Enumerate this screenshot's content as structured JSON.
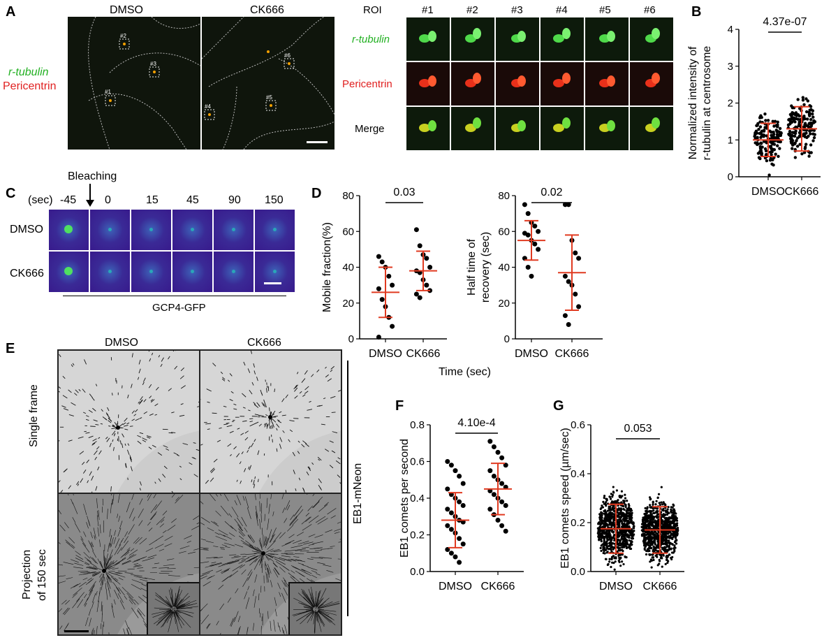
{
  "panels": {
    "A": "A",
    "B": "B",
    "C": "C",
    "D": "D",
    "E": "E",
    "F": "F",
    "G": "G"
  },
  "panelA": {
    "col_dmso": "DMSO",
    "col_ck666": "CK666",
    "stain_green": "r-tubulin",
    "stain_red": "Pericentrin",
    "roi_labels": [
      "#1",
      "#2",
      "#3",
      "#4",
      "#5",
      "#6"
    ],
    "roi_header": "ROI",
    "row_labels": [
      "r-tubulin",
      "Pericentrin",
      "Merge"
    ],
    "colors": {
      "green": "#22b022",
      "red": "#e02020"
    }
  },
  "panelC": {
    "bleaching": "Bleaching",
    "sec": "(sec)",
    "times": [
      "-45",
      "0",
      "15",
      "45",
      "90",
      "150"
    ],
    "rows": [
      "DMSO",
      "CK666"
    ],
    "footer": "GCP4-GFP"
  },
  "panelE": {
    "cols": [
      "DMSO",
      "CK666"
    ],
    "rows": [
      "Single frame",
      "Projection",
      "of 150 sec"
    ],
    "side_label": "EB1-mNeon"
  },
  "common": {
    "xlabel_time": "Time (sec)"
  },
  "chart_data": [
    {
      "id": "B",
      "type": "scatter",
      "ylabel_line1": "Normalized intensity of",
      "ylabel_line2": "r-tubulin at centrosome",
      "categories": [
        "DMSO",
        "CK666"
      ],
      "ylim": [
        0,
        4
      ],
      "yticks": [
        0,
        1,
        2,
        3,
        4
      ],
      "pvalue": "4.37e-07",
      "means": [
        1.0,
        1.3
      ],
      "sd": [
        0.45,
        0.6
      ]
    },
    {
      "id": "D1",
      "type": "scatter",
      "ylabel": "Mobile fraction(%)",
      "categories": [
        "DMSO",
        "CK666"
      ],
      "ylim": [
        0,
        80
      ],
      "yticks": [
        0,
        20,
        40,
        60,
        80
      ],
      "pvalue": "0.03",
      "means": [
        26,
        38
      ],
      "sd": [
        14,
        11
      ],
      "points": [
        [
          46,
          43,
          40,
          35,
          30,
          28,
          22,
          18,
          12,
          7,
          1
        ],
        [
          61,
          52,
          47,
          45,
          40,
          38,
          37,
          33,
          30,
          27,
          25,
          23
        ]
      ]
    },
    {
      "id": "D2",
      "type": "scatter",
      "ylabel_line1": "Half time of",
      "ylabel_line2": "recovery (sec)",
      "categories": [
        "DMSO",
        "CK666"
      ],
      "ylim": [
        0,
        80
      ],
      "yticks": [
        0,
        20,
        40,
        60,
        80
      ],
      "pvalue": "0.02",
      "means": [
        55,
        37
      ],
      "sd": [
        11,
        21
      ],
      "points": [
        [
          75,
          70,
          65,
          63,
          60,
          59,
          58,
          55,
          53,
          50,
          45,
          40,
          35
        ],
        [
          75,
          75,
          55,
          48,
          45,
          35,
          32,
          30,
          25,
          18,
          13,
          8
        ]
      ]
    },
    {
      "id": "F",
      "type": "scatter",
      "ylabel": "EB1 comets per second",
      "categories": [
        "DMSO",
        "CK666"
      ],
      "ylim": [
        0,
        0.8
      ],
      "yticks": [
        "0.0",
        "0.2",
        "0.4",
        "0.6",
        "0.8"
      ],
      "pvalue": "4.10e-4",
      "means": [
        0.28,
        0.45
      ],
      "sd": [
        0.15,
        0.14
      ],
      "points": [
        [
          0.6,
          0.58,
          0.55,
          0.52,
          0.48,
          0.45,
          0.42,
          0.4,
          0.38,
          0.36,
          0.34,
          0.32,
          0.3,
          0.28,
          0.27,
          0.25,
          0.23,
          0.21,
          0.18,
          0.15,
          0.12,
          0.1,
          0.08,
          0.05
        ],
        [
          0.71,
          0.68,
          0.65,
          0.62,
          0.58,
          0.55,
          0.52,
          0.5,
          0.48,
          0.46,
          0.44,
          0.42,
          0.4,
          0.38,
          0.36,
          0.34,
          0.31,
          0.28,
          0.25,
          0.22
        ]
      ]
    },
    {
      "id": "G",
      "type": "scatter",
      "ylabel": "EB1 comets speed (µm/sec)",
      "categories": [
        "DMSO",
        "CK666"
      ],
      "ylim": [
        0,
        0.6
      ],
      "yticks": [
        "0.0",
        "0.2",
        "0.4",
        "0.6"
      ],
      "pvalue": "0.053",
      "means": [
        0.175,
        0.17
      ],
      "sd": [
        0.1,
        0.095
      ]
    }
  ]
}
